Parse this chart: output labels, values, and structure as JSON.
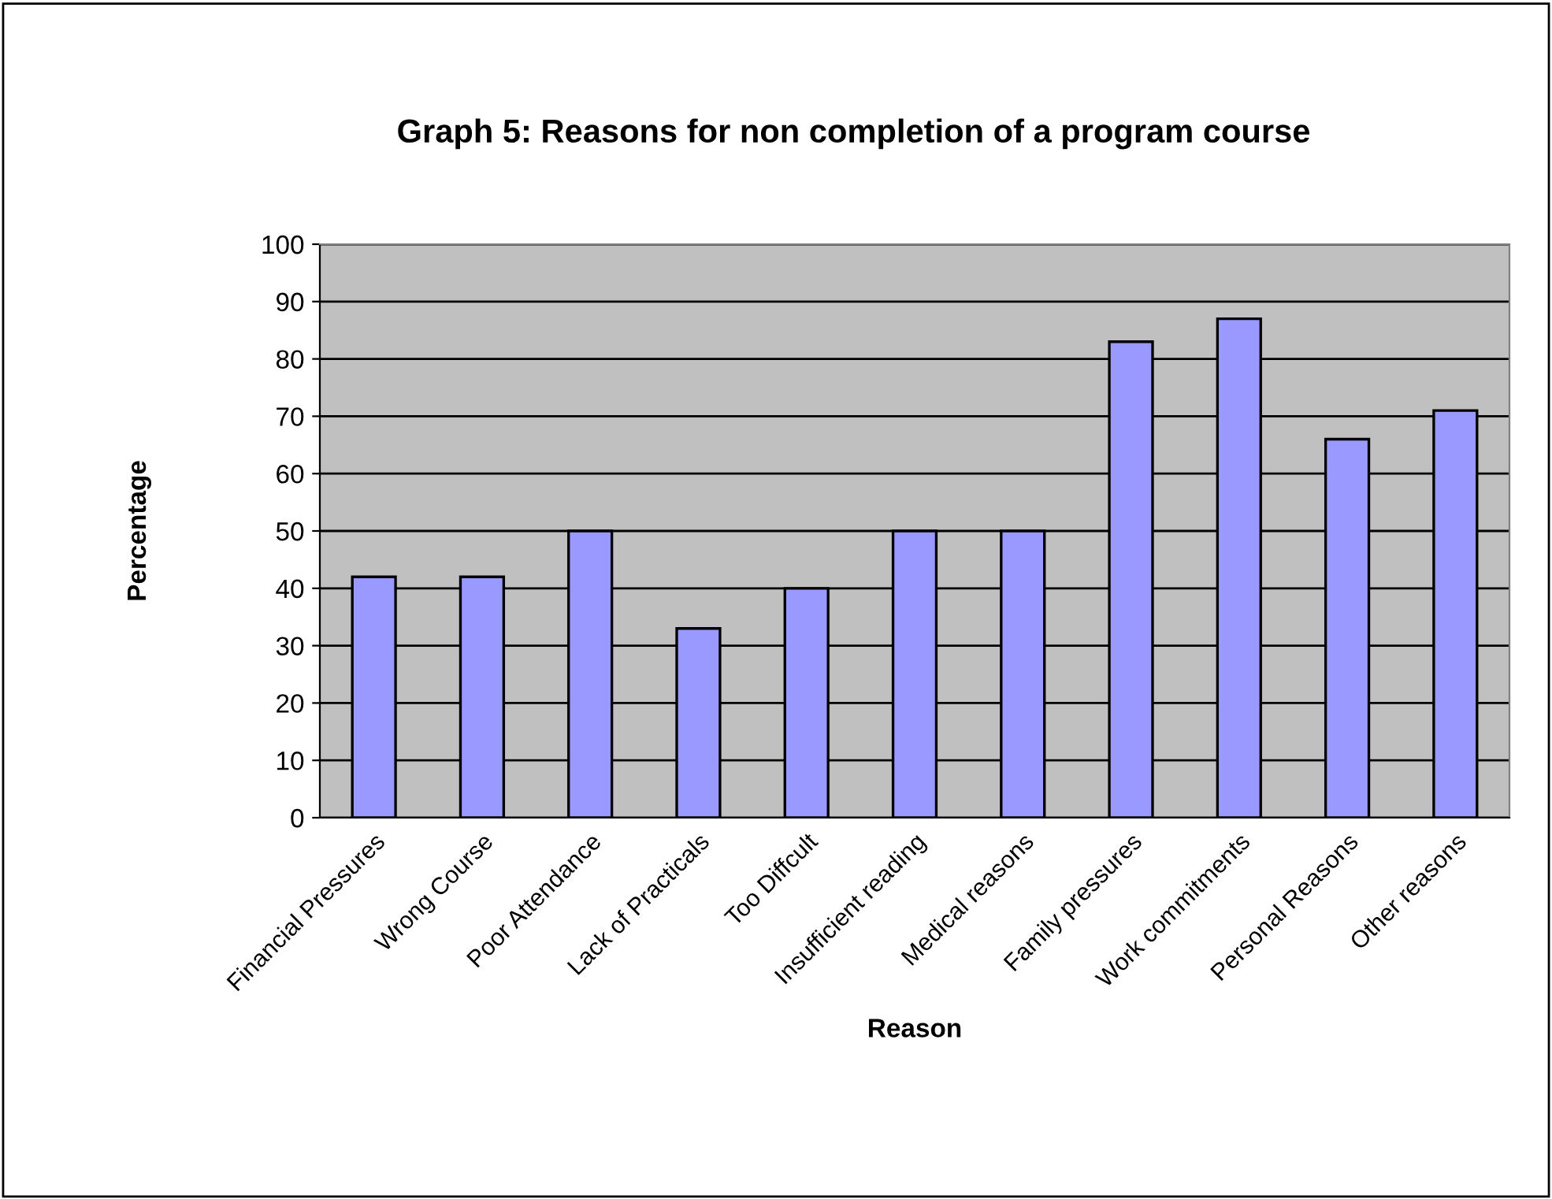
{
  "chart_data": {
    "type": "bar",
    "title": "Graph 5: Reasons for non completion of a program course",
    "xlabel": "Reason",
    "ylabel": "Percentage",
    "categories": [
      "Financial Pressures",
      "Wrong Course",
      "Poor Attendance",
      "Lack of Practicals",
      "Too Diffcult",
      "Insufficient reading",
      "Medical reasons",
      "Family pressures",
      "Work commitments",
      "Personal Reasons",
      "Other reasons"
    ],
    "values": [
      42,
      42,
      50,
      33,
      40,
      50,
      50,
      83,
      87,
      66,
      71
    ],
    "color": "#9999ff",
    "ylim": [
      0,
      100
    ],
    "yticks": [
      0,
      10,
      20,
      30,
      40,
      50,
      60,
      70,
      80,
      90,
      100
    ],
    "grid": "y",
    "legend": false
  }
}
